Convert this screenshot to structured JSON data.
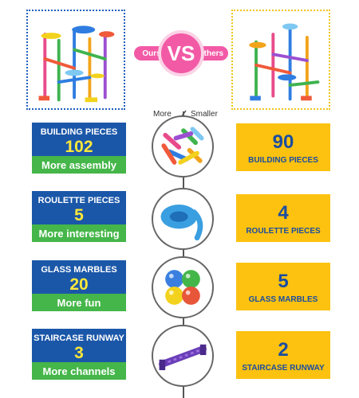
{
  "header": {
    "vs_label": "VS",
    "ours_label": "Ours",
    "others_label": "Others"
  },
  "columns": {
    "more_label": "More",
    "smaller_label": "Smaller"
  },
  "rows": [
    {
      "ours_title": "BUILDING PIECES",
      "ours_value": "102",
      "ours_tagline": "More assembly",
      "others_value": "90",
      "others_title": "BUILDING PIECES",
      "icon": "building-pieces-icon"
    },
    {
      "ours_title": "ROULETTE PIECES",
      "ours_value": "5",
      "ours_tagline": "More interesting",
      "others_value": "4",
      "others_title": "ROULETTE PIECES",
      "icon": "roulette-piece-icon"
    },
    {
      "ours_title": "GLASS MARBLES",
      "ours_value": "20",
      "ours_tagline": "More fun",
      "others_value": "5",
      "others_title": "GLASS MARBLES",
      "icon": "glass-marbles-icon"
    },
    {
      "ours_title": "STAIRCASE RUNWAY",
      "ours_value": "3",
      "ours_tagline": "More channels",
      "others_value": "2",
      "others_title": "STAIRCASE RUNWAY",
      "icon": "staircase-runway-icon"
    }
  ],
  "colors": {
    "ours_card": "#1b57a8",
    "ours_bar": "#45b649",
    "ours_number": "#ffe83a",
    "others_card": "#fcc20f",
    "others_text": "#1b4da0",
    "vs_pink": "#f25aa6"
  }
}
